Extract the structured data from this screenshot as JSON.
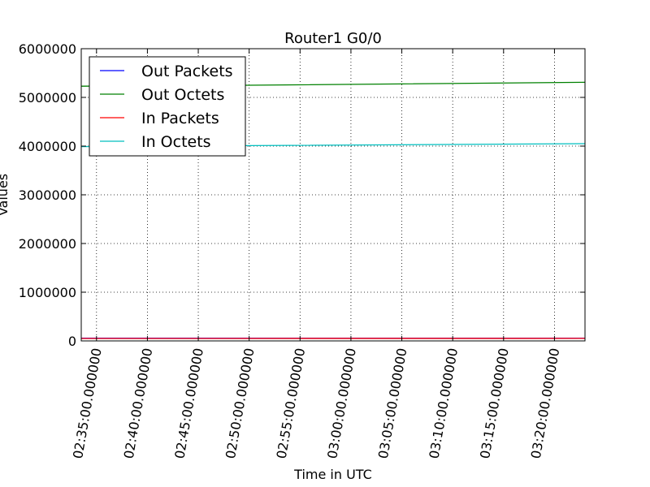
{
  "chart_data": {
    "type": "line",
    "title": "Router1 G0/0",
    "xlabel": "Time in UTC",
    "ylabel": "Values",
    "xlim": [
      "02:33:30",
      "03:23:00"
    ],
    "ylim": [
      0,
      6000000
    ],
    "yticks": [
      0,
      1000000,
      2000000,
      3000000,
      4000000,
      5000000,
      6000000
    ],
    "ytick_labels": [
      "0",
      "1000000",
      "2000000",
      "3000000",
      "4000000",
      "5000000",
      "6000000"
    ],
    "xticks": [
      "02:35:00",
      "02:40:00",
      "02:45:00",
      "02:50:00",
      "02:55:00",
      "03:00:00",
      "03:05:00",
      "03:10:00",
      "03:15:00",
      "03:20:00"
    ],
    "xtick_labels": [
      "02:35:00.000000",
      "02:40:00.000000",
      "02:45:00.000000",
      "02:50:00.000000",
      "02:55:00.000000",
      "03:00:00.000000",
      "03:05:00.000000",
      "03:10:00.000000",
      "03:15:00.000000",
      "03:20:00.000000"
    ],
    "grid": true,
    "legend_position": "top-left",
    "series": [
      {
        "name": "Out Packets",
        "color": "#0000ff",
        "x": [
          "02:33:30",
          "03:23:00"
        ],
        "values": [
          55000,
          56000
        ]
      },
      {
        "name": "Out Octets",
        "color": "#008000",
        "x": [
          "02:33:30",
          "02:50:00",
          "03:23:00"
        ],
        "values": [
          5230000,
          5250000,
          5310000
        ]
      },
      {
        "name": "In Packets",
        "color": "#ff0000",
        "x": [
          "02:33:30",
          "03:23:00"
        ],
        "values": [
          50000,
          51000
        ]
      },
      {
        "name": "In Octets",
        "color": "#00bfbf",
        "x": [
          "02:33:30",
          "02:50:00",
          "03:23:00"
        ],
        "values": [
          3990000,
          4010000,
          4050000
        ]
      }
    ]
  }
}
